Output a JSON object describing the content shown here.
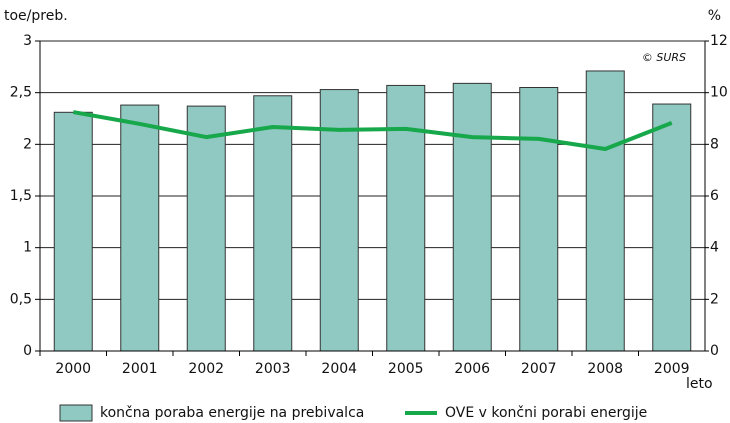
{
  "chart_data": {
    "type": "bar_line",
    "y_label": "toe/preb.",
    "y2_label": "%",
    "x_label": "leto",
    "annotation": "© SURS",
    "categories": [
      "2000",
      "2001",
      "2002",
      "2003",
      "2004",
      "2005",
      "2006",
      "2007",
      "2008",
      "2009"
    ],
    "series": [
      {
        "name": "končna poraba energije na prebivalca",
        "type": "bar",
        "color": "#8fc9c1",
        "axis": "y",
        "values": [
          2.31,
          2.38,
          2.37,
          2.47,
          2.53,
          2.57,
          2.59,
          2.55,
          2.71,
          2.39
        ]
      },
      {
        "name": "OVE v končni porabi energije",
        "type": "line",
        "color": "#17a84b",
        "axis": "y2",
        "values": [
          9.25,
          8.79,
          8.28,
          8.67,
          8.56,
          8.6,
          8.28,
          8.21,
          7.82,
          8.83
        ]
      }
    ],
    "ylim": [
      0,
      3
    ],
    "yticks": [
      0,
      {
        "value": 0.5,
        "label": "0,5"
      },
      1,
      {
        "value": 1.5,
        "label": "1,5"
      },
      2,
      {
        "value": 2.5,
        "label": "2,5"
      },
      3
    ],
    "y2lim": [
      0,
      12
    ],
    "y2ticks": [
      0,
      2,
      4,
      6,
      8,
      10,
      12
    ],
    "grid": true,
    "legend": "bottom"
  }
}
